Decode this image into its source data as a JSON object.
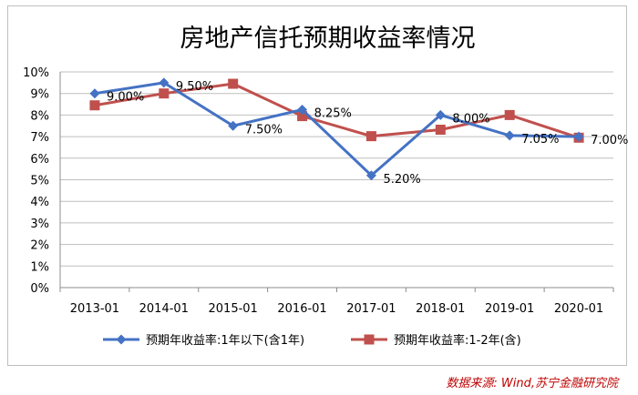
{
  "chart_data": {
    "type": "line",
    "title": "房地产信托预期收益率情况",
    "categories": [
      "2013-01",
      "2014-01",
      "2015-01",
      "2016-01",
      "2017-01",
      "2018-01",
      "2019-01",
      "2020-01"
    ],
    "ylim": [
      0,
      10
    ],
    "yticks": [
      "0%",
      "1%",
      "2%",
      "3%",
      "4%",
      "5%",
      "6%",
      "7%",
      "8%",
      "9%",
      "10%"
    ],
    "grid": true,
    "legend_position": "bottom",
    "series": [
      {
        "name": "预期年收益率:1年以下(含1年)",
        "color": "#4472c4",
        "marker": "diamond",
        "values": [
          9.0,
          9.5,
          7.5,
          8.25,
          5.2,
          8.0,
          7.05,
          7.0
        ],
        "labels": [
          "9.00%",
          "9.50%",
          "7.50%",
          "8.25%",
          "5.20%",
          "8.00%",
          "7.05%",
          "7.00%"
        ]
      },
      {
        "name": "预期年收益率:1-2年(含)",
        "color": "#c0504d",
        "marker": "square",
        "values": [
          8.45,
          9.0,
          9.45,
          7.95,
          7.02,
          7.32,
          8.0,
          6.95
        ]
      }
    ]
  },
  "source_text": "数据来源: Wind,苏宁金融研究院"
}
